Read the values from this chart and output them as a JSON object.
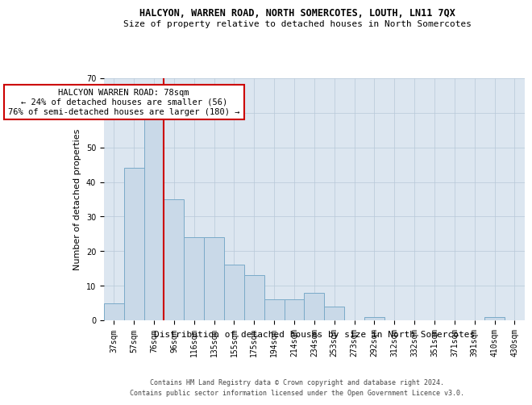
{
  "title_line1": "HALCYON, WARREN ROAD, NORTH SOMERCOTES, LOUTH, LN11 7QX",
  "title_line2": "Size of property relative to detached houses in North Somercotes",
  "xlabel": "Distribution of detached houses by size in North Somercotes",
  "ylabel": "Number of detached properties",
  "footer_line1": "Contains HM Land Registry data © Crown copyright and database right 2024.",
  "footer_line2": "Contains public sector information licensed under the Open Government Licence v3.0.",
  "annotation_title": "HALCYON WARREN ROAD: 78sqm",
  "annotation_line1": "← 24% of detached houses are smaller (56)",
  "annotation_line2": "76% of semi-detached houses are larger (180) →",
  "categories": [
    "37sqm",
    "57sqm",
    "76sqm",
    "96sqm",
    "116sqm",
    "135sqm",
    "155sqm",
    "175sqm",
    "194sqm",
    "214sqm",
    "234sqm",
    "253sqm",
    "273sqm",
    "292sqm",
    "312sqm",
    "332sqm",
    "351sqm",
    "371sqm",
    "391sqm",
    "410sqm",
    "430sqm"
  ],
  "values": [
    5,
    44,
    59,
    35,
    24,
    24,
    16,
    13,
    6,
    6,
    8,
    4,
    0,
    1,
    0,
    0,
    0,
    0,
    0,
    1,
    0
  ],
  "bar_color": "#c9d9e8",
  "bar_edge_color": "#7aaac8",
  "vline_color": "#cc0000",
  "vline_x_index": 2,
  "annotation_box_color": "#cc0000",
  "background_color": "#ffffff",
  "axes_bg_color": "#dce6f0",
  "grid_color": "#b8c8d8",
  "ylim": [
    0,
    70
  ],
  "yticks": [
    0,
    10,
    20,
    30,
    40,
    50,
    60,
    70
  ],
  "title_fontsize": 8.5,
  "subtitle_fontsize": 8,
  "ylabel_fontsize": 8,
  "xlabel_fontsize": 8,
  "tick_fontsize": 7,
  "footer_fontsize": 6,
  "annotation_fontsize": 7.5
}
